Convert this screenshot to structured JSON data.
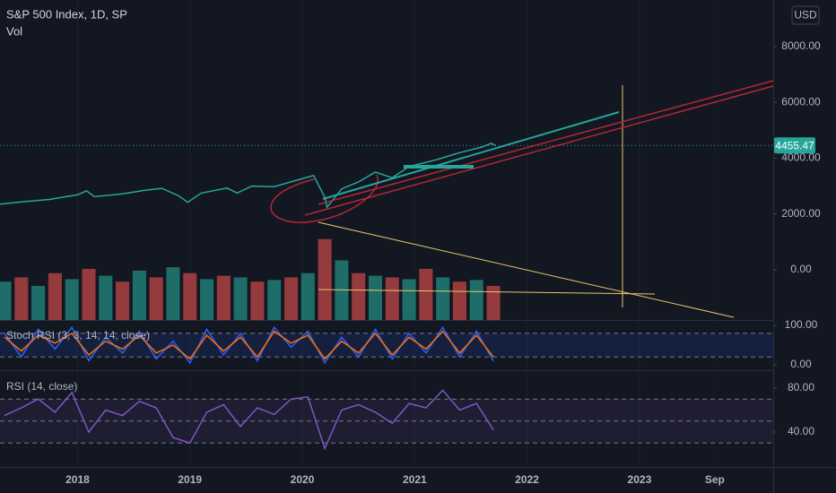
{
  "chart_data": [
    {
      "type": "line",
      "title": "S&P 500 Index, 1D, SP",
      "subtitle": "Vol",
      "currency": "USD",
      "x": [
        2017.31,
        2017.5,
        2017.75,
        2018.0,
        2018.08,
        2018.15,
        2018.4,
        2018.6,
        2018.75,
        2018.9,
        2018.98,
        2019.1,
        2019.33,
        2019.42,
        2019.55,
        2019.75,
        2019.9,
        2020.1,
        2020.2,
        2020.22,
        2020.35,
        2020.5,
        2020.65,
        2020.8,
        2020.95,
        2021.2,
        2021.4,
        2021.6,
        2021.68,
        2021.72
      ],
      "values": [
        2350,
        2430,
        2520,
        2690,
        2830,
        2620,
        2720,
        2850,
        2920,
        2650,
        2420,
        2750,
        2930,
        2750,
        3000,
        2980,
        3150,
        3380,
        2600,
        2240,
        2900,
        3150,
        3500,
        3300,
        3700,
        3950,
        4200,
        4400,
        4530,
        4455.47
      ],
      "value_labels": [
        null,
        null,
        null,
        null,
        null,
        null,
        null,
        null,
        null,
        null,
        null,
        null,
        null,
        null,
        null,
        null,
        null,
        null,
        null,
        null,
        null,
        null,
        null,
        null,
        null,
        null,
        null,
        null,
        null,
        "4455.47"
      ],
      "color": "#26a69a",
      "last_color": "#26a69a",
      "xlim": [
        2017.31,
        2024.19
      ],
      "xticks": [
        {
          "value": 2018,
          "label": "2018"
        },
        {
          "value": 2019,
          "label": "2019"
        },
        {
          "value": 2020,
          "label": "2020"
        },
        {
          "value": 2021,
          "label": "2021"
        },
        {
          "value": 2022,
          "label": "2022"
        },
        {
          "value": 2023,
          "label": "2023"
        },
        {
          "value": 2023.67,
          "label": "Sep"
        }
      ],
      "ylim": [
        -1800,
        9670
      ],
      "yticks": [
        {
          "value": 0,
          "label": "0.00"
        },
        {
          "value": 2000,
          "label": "2000.00"
        },
        {
          "value": 4000,
          "label": "4000.00"
        },
        {
          "value": 6000,
          "label": "6000.00"
        },
        {
          "value": 8000,
          "label": "8000.00"
        }
      ]
    },
    {
      "type": "bar",
      "x": [
        2017.35,
        2017.5,
        2017.65,
        2017.8,
        2017.95,
        2018.1,
        2018.25,
        2018.4,
        2018.55,
        2018.7,
        2018.85,
        2019.0,
        2019.15,
        2019.3,
        2019.45,
        2019.6,
        2019.75,
        2019.9,
        2020.05,
        2020.2,
        2020.35,
        2020.5,
        2020.65,
        2020.8,
        2020.95,
        2021.1,
        2021.25,
        2021.4,
        2021.55,
        2021.7
      ],
      "values": [
        45,
        50,
        40,
        55,
        48,
        60,
        52,
        45,
        58,
        50,
        62,
        55,
        48,
        52,
        50,
        45,
        47,
        50,
        55,
        95,
        70,
        55,
        52,
        50,
        48,
        60,
        50,
        45,
        47,
        40
      ],
      "colors": [
        "#26a69a99",
        "#ef535099"
      ],
      "ylim": [
        0,
        100
      ]
    },
    {
      "type": "line",
      "title": "Stoch RSI (3, 3, 14, 14, close)",
      "x": [
        2017.35,
        2017.5,
        2017.65,
        2017.8,
        2017.95,
        2018.1,
        2018.25,
        2018.4,
        2018.55,
        2018.7,
        2018.85,
        2019.0,
        2019.15,
        2019.3,
        2019.45,
        2019.6,
        2019.75,
        2019.9,
        2020.05,
        2020.2,
        2020.35,
        2020.5,
        2020.65,
        2020.8,
        2020.95,
        2021.1,
        2021.25,
        2021.4,
        2021.55,
        2021.7
      ],
      "series": [
        {
          "color": "#2962ff",
          "values": [
            80,
            20,
            90,
            40,
            95,
            10,
            70,
            30,
            85,
            15,
            60,
            5,
            90,
            25,
            80,
            10,
            95,
            45,
            85,
            5,
            70,
            20,
            90,
            15,
            80,
            30,
            95,
            20,
            85,
            10
          ]
        },
        {
          "color": "#ff6d00",
          "values": [
            70,
            35,
            75,
            55,
            80,
            25,
            60,
            40,
            75,
            30,
            50,
            15,
            75,
            35,
            70,
            20,
            85,
            55,
            75,
            15,
            60,
            30,
            80,
            25,
            70,
            40,
            85,
            30,
            75,
            20
          ]
        }
      ],
      "ylim": [
        -13.6,
        111.4
      ],
      "bands": [
        80,
        20
      ],
      "band_fill": "#2962ff22",
      "yticks": [
        {
          "value": 100,
          "label": "100.00"
        },
        {
          "value": 0,
          "label": "0.00"
        }
      ]
    },
    {
      "type": "line",
      "title": "RSI (14, close)",
      "x": [
        2017.35,
        2017.5,
        2017.65,
        2017.8,
        2017.95,
        2018.1,
        2018.25,
        2018.4,
        2018.55,
        2018.7,
        2018.85,
        2019.0,
        2019.15,
        2019.3,
        2019.45,
        2019.6,
        2019.75,
        2019.9,
        2020.05,
        2020.2,
        2020.35,
        2020.5,
        2020.65,
        2020.8,
        2020.95,
        2021.1,
        2021.25,
        2021.4,
        2021.55,
        2021.7
      ],
      "series": [
        {
          "color": "#7e57c2",
          "values": [
            55,
            62,
            70,
            58,
            76,
            40,
            60,
            55,
            68,
            62,
            35,
            30,
            58,
            65,
            45,
            62,
            56,
            70,
            72,
            25,
            60,
            65,
            58,
            48,
            66,
            62,
            78,
            60,
            66,
            42
          ]
        }
      ],
      "ylim": [
        7.3,
        94.7
      ],
      "bands": [
        70,
        50,
        30
      ],
      "band_fill": "#7e57c21a",
      "yticks": [
        {
          "value": 80,
          "label": "80.00"
        },
        {
          "value": 40,
          "label": "40.00"
        }
      ]
    }
  ]
}
